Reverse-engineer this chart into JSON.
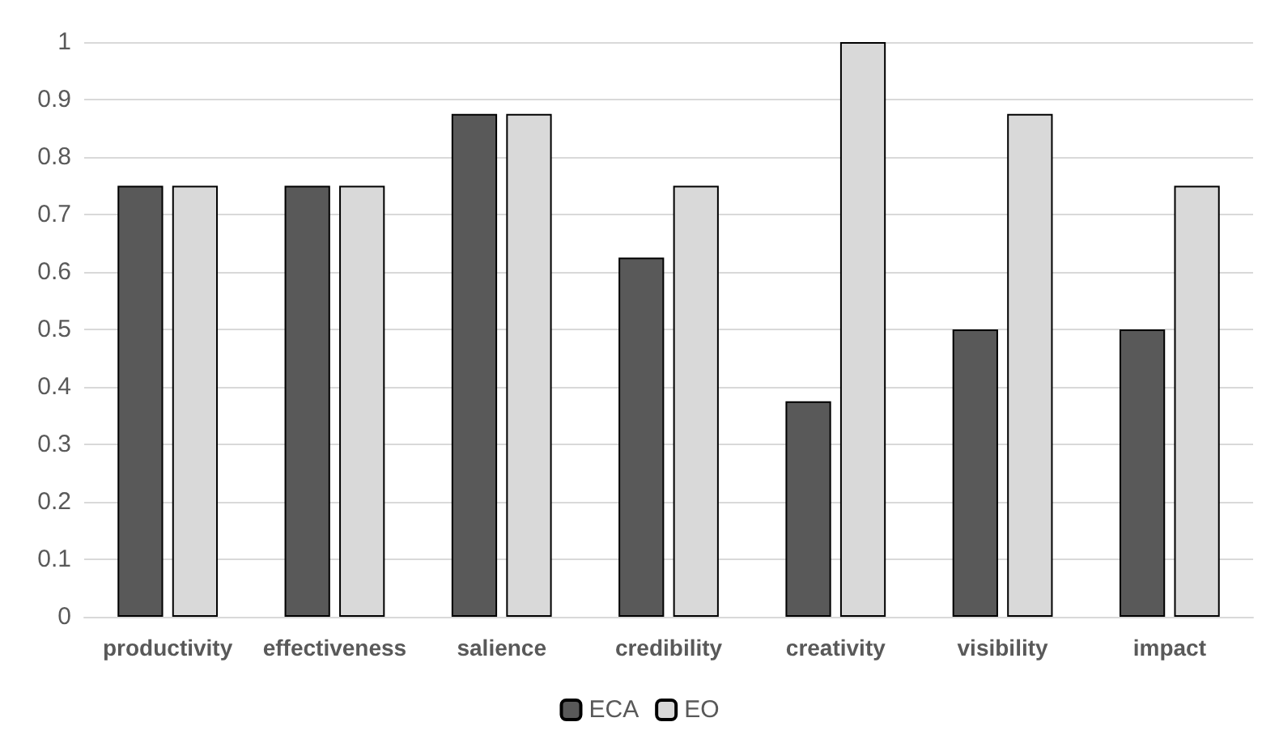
{
  "chart_data": {
    "type": "bar",
    "categories": [
      "productivity",
      "effectiveness",
      "salience",
      "credibility",
      "creativity",
      "visibility",
      "impact"
    ],
    "series": [
      {
        "name": "ECA",
        "color": "#595959",
        "values": [
          0.75,
          0.75,
          0.875,
          0.625,
          0.375,
          0.5,
          0.5
        ]
      },
      {
        "name": "EO",
        "color": "#d9d9d9",
        "values": [
          0.75,
          0.75,
          0.875,
          0.75,
          1,
          0.875,
          0.75
        ]
      }
    ],
    "ylim": [
      0,
      1
    ],
    "yticks": [
      0,
      0.1,
      0.2,
      0.3,
      0.4,
      0.5,
      0.6,
      0.7,
      0.8,
      0.9,
      1
    ],
    "grid": "y",
    "legend": "bottom"
  }
}
